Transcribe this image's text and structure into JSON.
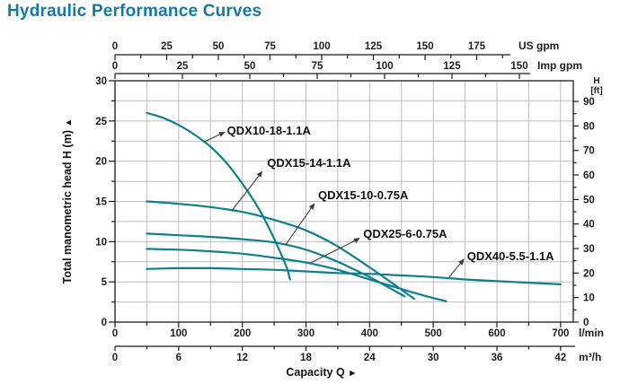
{
  "title": "Hydraulic Performance Curves",
  "colors": {
    "title_accent": "#1578A5",
    "curve": "#0E7F8E",
    "axis": "#1a1a1a",
    "grid": "#bdbdbd",
    "annotation": "#3c3c3c"
  },
  "chart_data": {
    "type": "line",
    "title": "Hydraulic Performance Curves",
    "x_axis_label": "Capacity Q",
    "x_axis_arrow": "►",
    "y_axis_label": "Total manometric head H (m)",
    "y_axis_arrow": "▲",
    "x_range_lmin": [
      0,
      720
    ],
    "y_range_m": [
      0,
      30
    ],
    "grid": {
      "x_step_lmin": 50,
      "y_step_m": 2.5,
      "visible": true
    },
    "axes": {
      "top_us": {
        "unit": "US gpm",
        "ticks": [
          0,
          25,
          50,
          75,
          100,
          125,
          150,
          175
        ],
        "minor_step": 12.5
      },
      "top_imp": {
        "unit": "Imp gpm",
        "ticks": [
          0,
          25,
          50,
          75,
          100,
          125,
          150
        ],
        "minor_step": 12.5
      },
      "left_m": {
        "unit": "m",
        "ticks": [
          0,
          5,
          10,
          15,
          20,
          25,
          30
        ],
        "minor_step": 2.5
      },
      "right_ft": {
        "unit_line1": "H",
        "unit_line2": "[ft]",
        "ticks": [
          0,
          10,
          20,
          30,
          40,
          50,
          60,
          70,
          80,
          90
        ],
        "minor_step": 5
      },
      "bottom_lmin": {
        "unit": "l/min",
        "ticks": [
          0,
          100,
          200,
          300,
          400,
          500,
          600,
          700
        ],
        "minor_step": 50
      },
      "bottom_m3h": {
        "unit": "m³/h",
        "ticks": [
          0,
          6,
          12,
          18,
          24,
          30,
          36,
          42
        ],
        "minor_step": 3
      }
    },
    "series": [
      {
        "name": "QDX10-18-1.1A",
        "points": [
          [
            50,
            26.0
          ],
          [
            75,
            25.4
          ],
          [
            100,
            24.5
          ],
          [
            125,
            23.3
          ],
          [
            150,
            21.8
          ],
          [
            175,
            19.8
          ],
          [
            200,
            17.2
          ],
          [
            225,
            14.2
          ],
          [
            245,
            11.2
          ],
          [
            260,
            8.6
          ],
          [
            270,
            6.7
          ],
          [
            275,
            5.3
          ]
        ]
      },
      {
        "name": "QDX15-14-1.1A",
        "points": [
          [
            50,
            15.0
          ],
          [
            100,
            14.7
          ],
          [
            150,
            14.3
          ],
          [
            200,
            13.7
          ],
          [
            250,
            12.7
          ],
          [
            300,
            11.4
          ],
          [
            350,
            9.4
          ],
          [
            400,
            6.8
          ],
          [
            440,
            4.6
          ],
          [
            470,
            2.9
          ]
        ]
      },
      {
        "name": "QDX15-10-0.75A",
        "points": [
          [
            50,
            11.0
          ],
          [
            100,
            10.8
          ],
          [
            150,
            10.6
          ],
          [
            200,
            10.3
          ],
          [
            250,
            9.9
          ],
          [
            300,
            9.0
          ],
          [
            350,
            7.5
          ],
          [
            400,
            5.6
          ],
          [
            430,
            4.3
          ],
          [
            455,
            3.2
          ]
        ]
      },
      {
        "name": "QDX25-6-0.75A",
        "points": [
          [
            50,
            9.1
          ],
          [
            100,
            9.0
          ],
          [
            150,
            8.8
          ],
          [
            200,
            8.5
          ],
          [
            250,
            8.0
          ],
          [
            300,
            7.4
          ],
          [
            350,
            6.5
          ],
          [
            400,
            5.3
          ],
          [
            450,
            4.1
          ],
          [
            490,
            3.2
          ],
          [
            520,
            2.6
          ]
        ]
      },
      {
        "name": "QDX40-5.5-1.1A",
        "points": [
          [
            50,
            6.6
          ],
          [
            100,
            6.7
          ],
          [
            150,
            6.7
          ],
          [
            200,
            6.6
          ],
          [
            250,
            6.5
          ],
          [
            300,
            6.3
          ],
          [
            350,
            6.1
          ],
          [
            400,
            6.0
          ],
          [
            450,
            5.8
          ],
          [
            500,
            5.6
          ],
          [
            550,
            5.3
          ],
          [
            600,
            5.1
          ],
          [
            650,
            4.9
          ],
          [
            700,
            4.7
          ]
        ]
      }
    ],
    "annotations": [
      {
        "label": "QDX10-18-1.1A",
        "from": [
          140,
          22.4
        ],
        "to": [
          172,
          23.6
        ],
        "label_at": [
          176,
          23.3
        ]
      },
      {
        "label": "QDX15-14-1.1A",
        "from": [
          184,
          13.9
        ],
        "to": [
          231,
          18.7
        ],
        "label_at": [
          239,
          19.3
        ]
      },
      {
        "label": "QDX15-10-0.75A",
        "from": [
          268,
          9.6
        ],
        "to": [
          313,
          14.7
        ],
        "label_at": [
          319,
          15.3
        ]
      },
      {
        "label": "QDX25-6-0.75A",
        "from": [
          306,
          7.3
        ],
        "to": [
          384,
          10.4
        ],
        "label_at": [
          390,
          10.5
        ]
      },
      {
        "label": "QDX40-5.5-1.1A",
        "from": [
          525,
          5.6
        ],
        "to": [
          548,
          7.8
        ],
        "label_at": [
          553,
          7.7
        ]
      }
    ]
  }
}
